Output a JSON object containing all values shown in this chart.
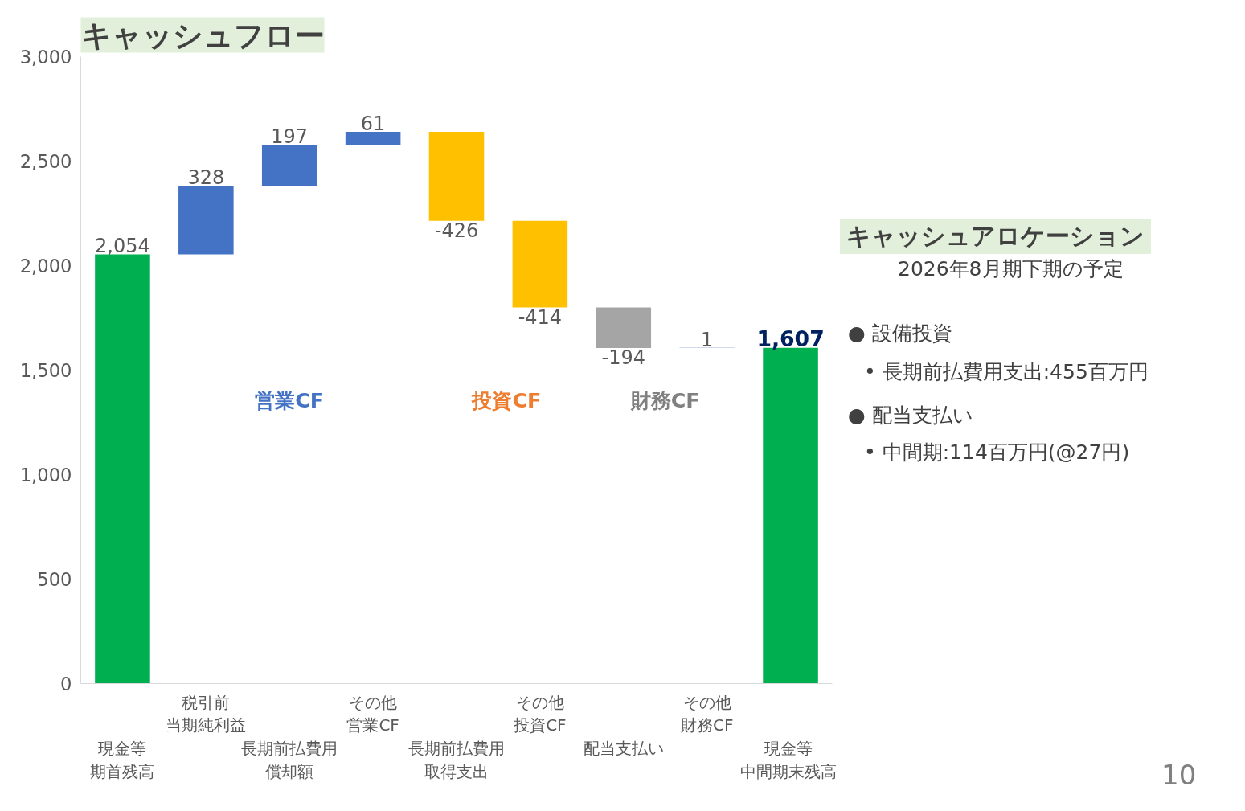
{
  "chart_data": {
    "type": "bar",
    "title": "キャッシュフロー",
    "categories": [
      "現金等期首残高",
      "税引前当期純利益",
      "長期前払費用償却額",
      "その他営業CF",
      "長期前払費用取得支出",
      "その他投資CF",
      "配当支払い",
      "その他財務CF",
      "現金等中間期末残高"
    ],
    "values": [
      2054,
      328,
      197,
      61,
      -426,
      -414,
      -194,
      1,
      1607
    ],
    "base": [
      0,
      2054,
      2382,
      2579,
      2640,
      2214,
      1800,
      1606,
      0
    ],
    "colors": [
      "#00b050",
      "#4472c4",
      "#4472c4",
      "#4472c4",
      "#ffc000",
      "#ffc000",
      "#a5a5a5",
      "#4472c4",
      "#00b050"
    ],
    "value_labels": [
      "2,054",
      "328",
      "197",
      "61",
      "-426",
      "-414",
      "-194",
      "1",
      "1,607"
    ],
    "ylim": [
      0,
      3000
    ],
    "yticks": [
      0,
      {
        "value": 500,
        "label": "500"
      },
      {
        "value": 1000,
        "label": "1,000"
      },
      {
        "value": 1500,
        "label": "1,500"
      },
      {
        "value": 2000,
        "label": "2,000"
      },
      {
        "value": 2500,
        "label": "2,500"
      },
      {
        "value": 3000,
        "label": "3,000"
      }
    ],
    "grid": false,
    "annotations": [
      "営業CF",
      "投資CF",
      "財務CF",
      "キャッシュアロケーション",
      "2026年8月期下期の予定",
      "● 設備投資",
      "• 長期前払費用支出:455百万円",
      "● 配当支払い",
      "• 中間期:114百万円(@27円)",
      "10"
    ]
  }
}
